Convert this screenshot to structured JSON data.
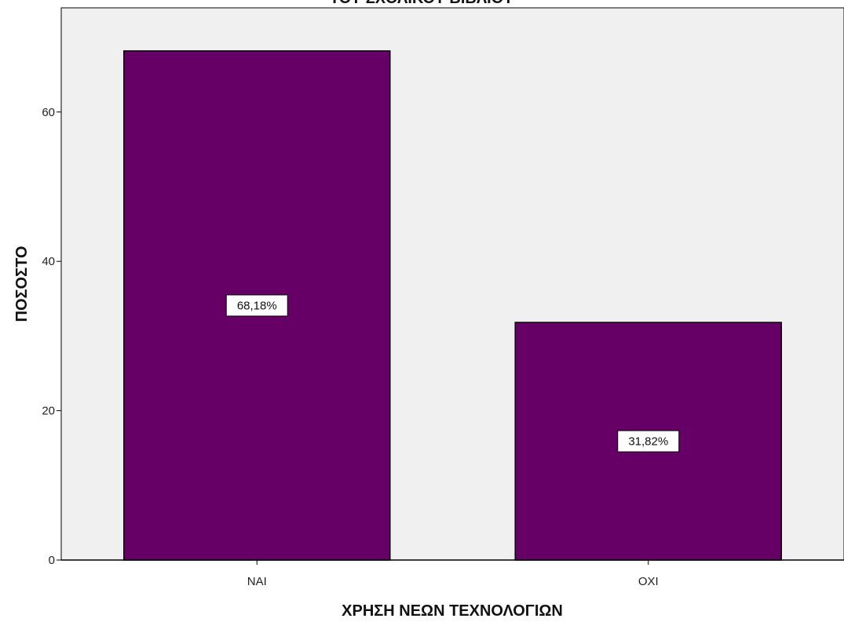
{
  "chart_data": {
    "type": "bar",
    "title": "ΤΟΥ ΣΧΟΛΙΚΟΥ ΒΙΒΛΙΟΥ",
    "xlabel": "ΧΡΗΣΗ ΝΕΩΝ ΤΕΧΝΟΛΟΓΙΩΝ",
    "ylabel": "ΠΟΣΟΣΤΟ",
    "categories": [
      "NAI",
      "OXI"
    ],
    "values": [
      68.18,
      31.82
    ],
    "data_labels": [
      "68,18%",
      "31,82%"
    ],
    "ylim": [
      0,
      75
    ],
    "yticks": [
      0,
      20,
      40,
      60
    ],
    "ytick_labels": [
      "0",
      "20",
      "40",
      "60"
    ],
    "grid": false,
    "colors": {
      "bar_fill": "#660066",
      "bar_stroke": "#000000",
      "plot_background": "#f0f0f0",
      "axis": "#000000"
    }
  }
}
